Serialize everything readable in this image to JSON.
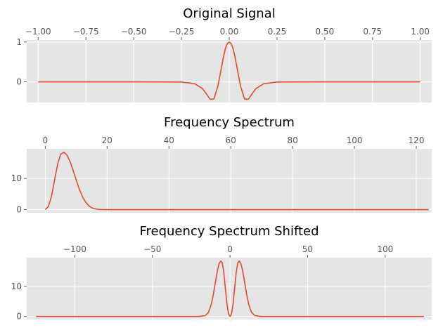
{
  "style": {
    "accent": "#e24a33",
    "panel_bg": "#e5e5e5",
    "grid": "#ffffff",
    "tick_color": "#555555"
  },
  "chart_data": [
    {
      "type": "line",
      "title": "Original Signal",
      "xlabel": "",
      "ylabel": "",
      "xlim": [
        -1.06,
        1.06
      ],
      "ylim": [
        -0.52,
        1.05
      ],
      "xticks": [
        -1.0,
        -0.75,
        -0.5,
        -0.25,
        0.0,
        0.25,
        0.5,
        0.75,
        1.0
      ],
      "xtick_labels": [
        "−1.00",
        "−0.75",
        "−0.50",
        "−0.25",
        "0.00",
        "0.25",
        "0.50",
        "0.75",
        "1.00"
      ],
      "yticks": [
        0,
        1
      ],
      "ytick_labels": [
        "0",
        "1"
      ],
      "grid": true,
      "series": [
        {
          "color": "#e24a33",
          "x": [
            -1.0,
            -0.5,
            -0.25,
            -0.18,
            -0.14,
            -0.12,
            -0.1,
            -0.08,
            -0.06,
            -0.05,
            -0.04,
            -0.03,
            -0.02,
            -0.01,
            0.0,
            0.01,
            0.02,
            0.03,
            0.04,
            0.05,
            0.06,
            0.08,
            0.1,
            0.12,
            0.14,
            0.18,
            0.25,
            0.5,
            1.0
          ],
          "y": [
            0.0,
            0.0,
            -0.005,
            -0.05,
            -0.17,
            -0.3,
            -0.44,
            -0.43,
            -0.12,
            0.12,
            0.38,
            0.63,
            0.84,
            0.96,
            1.0,
            0.96,
            0.84,
            0.63,
            0.38,
            0.12,
            -0.12,
            -0.43,
            -0.44,
            -0.3,
            -0.17,
            -0.05,
            -0.005,
            0.0,
            0.0
          ]
        }
      ]
    },
    {
      "type": "line",
      "title": "Frequency Spectrum",
      "xlabel": "",
      "ylabel": "",
      "xlim": [
        -6,
        125
      ],
      "ylim": [
        -1,
        19.5
      ],
      "xticks": [
        0,
        20,
        40,
        60,
        80,
        100,
        120
      ],
      "xtick_labels": [
        "0",
        "20",
        "40",
        "60",
        "80",
        "100",
        "120"
      ],
      "yticks": [
        0,
        10
      ],
      "ytick_labels": [
        "0",
        "10"
      ],
      "grid": true,
      "series": [
        {
          "color": "#e24a33",
          "x": [
            0,
            1,
            2,
            3,
            4,
            5,
            6,
            7,
            8,
            9,
            10,
            11,
            12,
            13,
            14,
            15,
            16,
            17,
            18,
            20,
            124
          ],
          "y": [
            0.0,
            1.0,
            4.2,
            9.4,
            14.6,
            17.8,
            18.4,
            17.5,
            15.5,
            12.6,
            9.5,
            6.6,
            4.2,
            2.5,
            1.3,
            0.6,
            0.28,
            0.1,
            0.04,
            0.0,
            0.0
          ]
        }
      ]
    },
    {
      "type": "line",
      "title": "Frequency Spectrum Shifted",
      "xlabel": "",
      "ylabel": "",
      "xlim": [
        -131,
        130
      ],
      "ylim": [
        -1,
        19.5
      ],
      "xticks": [
        -100,
        -50,
        0,
        50,
        100
      ],
      "xtick_labels": [
        "−100",
        "−50",
        "0",
        "50",
        "100"
      ],
      "yticks": [
        0,
        10
      ],
      "ytick_labels": [
        "0",
        "10"
      ],
      "grid": true,
      "series": [
        {
          "color": "#e24a33",
          "x": [
            -125,
            -20,
            -16,
            -14,
            -13,
            -12,
            -11,
            -10,
            -9,
            -8,
            -7,
            -6,
            -5,
            -4,
            -3,
            -2,
            -1,
            0,
            1,
            2,
            3,
            4,
            5,
            6,
            7,
            8,
            9,
            10,
            11,
            12,
            13,
            14,
            16,
            20,
            125
          ],
          "y": [
            0.0,
            0.0,
            0.28,
            1.3,
            2.5,
            4.2,
            6.6,
            9.5,
            12.6,
            15.5,
            17.5,
            18.4,
            17.8,
            14.6,
            9.4,
            4.2,
            1.0,
            0.0,
            1.0,
            4.2,
            9.4,
            14.6,
            17.8,
            18.4,
            17.5,
            15.5,
            12.6,
            9.5,
            6.6,
            4.2,
            2.5,
            1.3,
            0.28,
            0.0,
            0.0
          ]
        }
      ]
    }
  ]
}
